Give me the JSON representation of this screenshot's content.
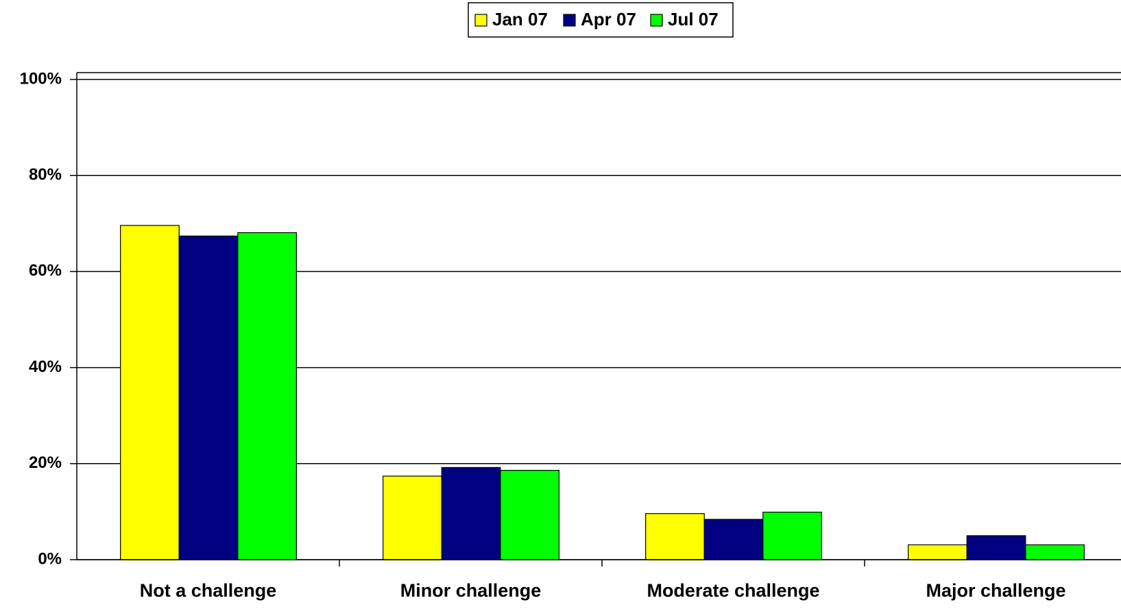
{
  "chart_data": {
    "type": "bar",
    "categories": [
      "Not a challenge",
      "Minor challenge",
      "Moderate challenge",
      "Major challenge"
    ],
    "series": [
      {
        "name": "Jan 07",
        "color": "#ffff00",
        "values": [
          69.6,
          17.4,
          9.6,
          3.1
        ]
      },
      {
        "name": "Apr 07",
        "color": "#000080",
        "values": [
          67.4,
          19.2,
          8.4,
          5.0
        ]
      },
      {
        "name": "Jul 07",
        "color": "#00ff00",
        "values": [
          68.1,
          18.6,
          9.9,
          3.1
        ]
      }
    ],
    "ylim": [
      0,
      100
    ],
    "yticks": [
      {
        "value": 0,
        "label": "0%"
      },
      {
        "value": 20,
        "label": "20%"
      },
      {
        "value": 40,
        "label": "40%"
      },
      {
        "value": 60,
        "label": "60%"
      },
      {
        "value": 80,
        "label": "80%"
      },
      {
        "value": 100,
        "label": "100%"
      }
    ],
    "grid": true,
    "legend": "top"
  }
}
